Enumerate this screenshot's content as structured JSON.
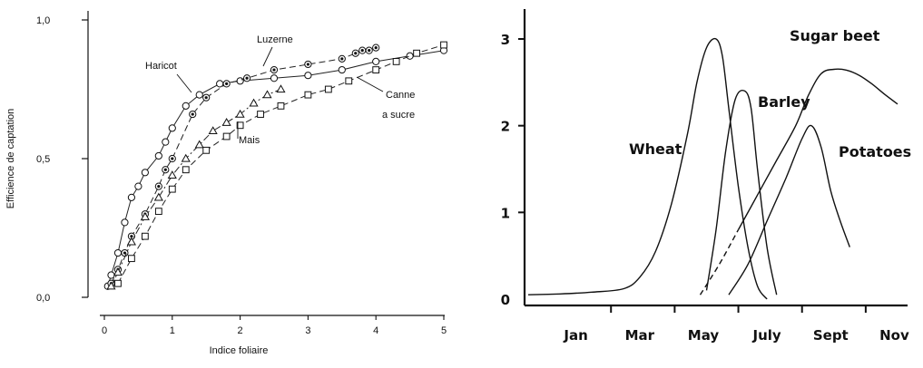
{
  "chart_data": [
    {
      "type": "scatter",
      "xlabel": "Indice foliaire",
      "ylabel": "Efficience de captation",
      "xlim": [
        0,
        5
      ],
      "ylim": [
        0,
        1
      ],
      "xticks": [
        "0",
        "1",
        "2",
        "3",
        "4",
        "5"
      ],
      "yticks": [
        "0,0",
        "0,5",
        "1,0"
      ],
      "series": [
        {
          "name": "Haricot",
          "marker": "open-circle",
          "line": "solid",
          "x": [
            0.05,
            0.1,
            0.2,
            0.3,
            0.4,
            0.5,
            0.6,
            0.8,
            0.9,
            1.0,
            1.2,
            1.4,
            1.7,
            2.0,
            2.5,
            3.0,
            3.5,
            4.0,
            4.5,
            5.0
          ],
          "y": [
            0.04,
            0.08,
            0.16,
            0.27,
            0.36,
            0.4,
            0.45,
            0.51,
            0.56,
            0.61,
            0.69,
            0.73,
            0.77,
            0.78,
            0.79,
            0.8,
            0.82,
            0.85,
            0.87,
            0.89
          ]
        },
        {
          "name": "Luzerne",
          "marker": "dotted-circle",
          "line": "dashed",
          "x": [
            0.1,
            0.2,
            0.3,
            0.4,
            0.6,
            0.8,
            0.9,
            1.0,
            1.3,
            1.5,
            1.8,
            2.1,
            2.5,
            3.0,
            3.5,
            3.7,
            3.8,
            3.9,
            4.0
          ],
          "y": [
            0.05,
            0.1,
            0.16,
            0.22,
            0.3,
            0.4,
            0.46,
            0.5,
            0.66,
            0.72,
            0.77,
            0.79,
            0.82,
            0.84,
            0.86,
            0.88,
            0.89,
            0.89,
            0.9
          ]
        },
        {
          "name": "Mais",
          "marker": "open-triangle",
          "line": "dash-dot",
          "x": [
            0.1,
            0.2,
            0.4,
            0.6,
            0.8,
            1.0,
            1.2,
            1.4,
            1.6,
            1.8,
            2.0,
            2.2,
            2.4,
            2.6
          ],
          "y": [
            0.04,
            0.09,
            0.2,
            0.29,
            0.36,
            0.44,
            0.5,
            0.55,
            0.6,
            0.63,
            0.66,
            0.7,
            0.73,
            0.75
          ]
        },
        {
          "name": "Canne a sucre",
          "marker": "open-square",
          "line": "dashed",
          "x": [
            0.2,
            0.4,
            0.6,
            0.8,
            1.0,
            1.2,
            1.5,
            1.8,
            2.0,
            2.3,
            2.6,
            3.0,
            3.3,
            3.6,
            4.0,
            4.3,
            4.6,
            5.0
          ],
          "y": [
            0.05,
            0.14,
            0.22,
            0.31,
            0.39,
            0.46,
            0.53,
            0.58,
            0.62,
            0.66,
            0.69,
            0.73,
            0.75,
            0.78,
            0.82,
            0.85,
            0.88,
            0.91
          ]
        }
      ],
      "annotations": [
        "Haricot",
        "Luzerne",
        "Canne",
        "a sucre",
        "Mais"
      ]
    },
    {
      "type": "line",
      "xlabel": "",
      "ylabel": "",
      "xlim": [
        0,
        12
      ],
      "ylim": [
        0,
        3
      ],
      "xticks": [
        "Jan",
        "Mar",
        "May",
        "July",
        "Sept",
        "Nov"
      ],
      "yticks": [
        "0",
        "1",
        "2",
        "3"
      ],
      "series": [
        {
          "name": "Wheat",
          "x": [
            0,
            1,
            2,
            3,
            3.5,
            4,
            4.5,
            5,
            5.3,
            5.6,
            5.9,
            6.1,
            6.3,
            6.6,
            6.9,
            7.2,
            7.5
          ],
          "y": [
            0.05,
            0.06,
            0.08,
            0.12,
            0.25,
            0.55,
            1.1,
            1.9,
            2.5,
            2.9,
            3.0,
            2.8,
            2.2,
            1.3,
            0.6,
            0.15,
            0.0
          ]
        },
        {
          "name": "Barley",
          "x": [
            5.6,
            5.9,
            6.2,
            6.5,
            6.8,
            7.0,
            7.2,
            7.5,
            7.8
          ],
          "y": [
            0.1,
            0.8,
            1.7,
            2.3,
            2.4,
            2.2,
            1.5,
            0.6,
            0.05
          ]
        },
        {
          "name": "Sugar beet",
          "dashed_start": true,
          "x": [
            5.4,
            6.0,
            6.6,
            7.2,
            7.8,
            8.4,
            8.8,
            9.2,
            9.6,
            10.0,
            10.4,
            10.8,
            11.2,
            11.6
          ],
          "y": [
            0.05,
            0.4,
            0.8,
            1.2,
            1.6,
            2.0,
            2.35,
            2.6,
            2.65,
            2.64,
            2.58,
            2.48,
            2.36,
            2.25
          ]
        },
        {
          "name": "Potatoes",
          "x": [
            6.3,
            6.9,
            7.5,
            8.1,
            8.6,
            8.9,
            9.2,
            9.5,
            9.8,
            10.1
          ],
          "y": [
            0.05,
            0.4,
            0.9,
            1.4,
            1.85,
            2.0,
            1.75,
            1.25,
            0.9,
            0.6
          ]
        }
      ]
    }
  ]
}
